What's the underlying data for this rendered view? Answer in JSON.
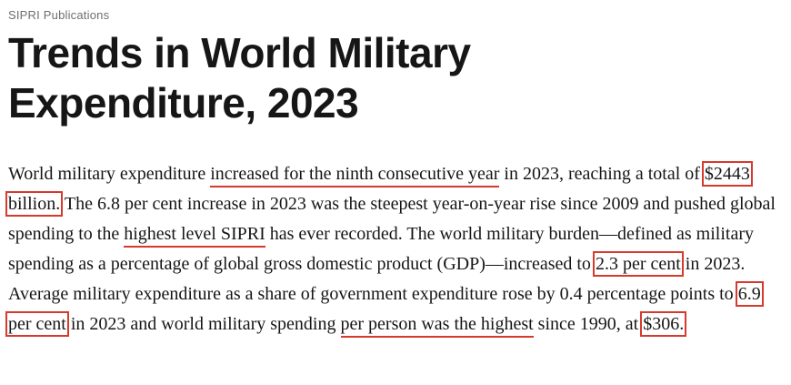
{
  "page": {
    "kicker": "SIPRI Publications",
    "title_line1": "Trends in World Military",
    "title_line2": "Expenditure, 2023"
  },
  "colors": {
    "annotation_red": "#d53a2c",
    "kicker_gray": "#6e6e6e",
    "text_color": "#161616"
  },
  "paragraph": {
    "segments": [
      {
        "text": "World military expenditure ",
        "style": "plain"
      },
      {
        "text": "increased for the ninth consecutive year",
        "style": "underline"
      },
      {
        "text": " in 2023, reaching a total of ",
        "style": "plain"
      },
      {
        "text": "$2443 billion.",
        "style": "box"
      },
      {
        "text": " The 6.8 per cent increase in 2023 was the steepest year-on-year rise since 2009 and pushed global spending to the ",
        "style": "plain"
      },
      {
        "text": "highest level SIPRI",
        "style": "underline"
      },
      {
        "text": " has ever recorded. The world military burden—defined as military spending as a percentage of global gross domestic product (GDP)—increased to ",
        "style": "plain"
      },
      {
        "text": "2.3 per cent",
        "style": "box"
      },
      {
        "text": " in 2023. Average military expenditure as a share of government expenditure rose by 0.4 percentage points to ",
        "style": "plain"
      },
      {
        "text": "6.9 per cent",
        "style": "box"
      },
      {
        "text": " in 2023 and world military spending ",
        "style": "plain"
      },
      {
        "text": "per person was the highest",
        "style": "underline"
      },
      {
        "text": " since 1990, at ",
        "style": "plain"
      },
      {
        "text": "$306.",
        "style": "box"
      }
    ]
  }
}
